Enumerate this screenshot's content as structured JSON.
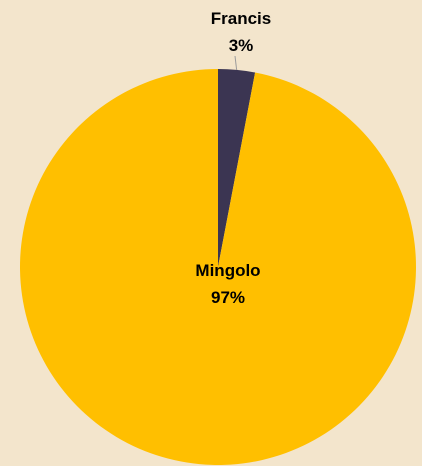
{
  "chart_data": {
    "type": "pie",
    "title": "",
    "slices": [
      {
        "label": "Francis",
        "percent_label": "3%",
        "value": 3,
        "color": "#3b3552"
      },
      {
        "label": "Mingolo",
        "percent_label": "97%",
        "value": 97,
        "color": "#ffbf00"
      }
    ],
    "legend": "none",
    "background_color": "#f3e5cc",
    "start_angle": "12 o'clock",
    "direction": "clockwise"
  }
}
